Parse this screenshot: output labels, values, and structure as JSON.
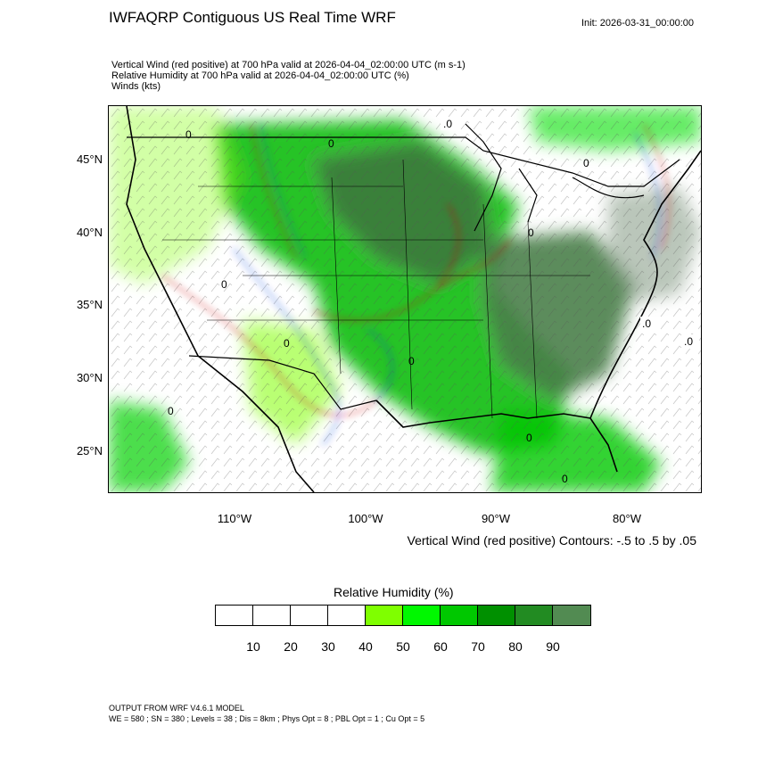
{
  "header": {
    "title": "IWFAQRP Contiguous US Real Time WRF",
    "init": "Init: 2026-03-31_00:00:00"
  },
  "description": {
    "line1": "Vertical Wind (red positive) at 700 hPa valid at 2026-04-04_02:00:00 UTC   (m s-1)",
    "line2": "Relative Humidity at 700 hPa valid at 2026-04-04_02:00:00 UTC   (%)",
    "line3": "Winds   (kts)"
  },
  "map": {
    "latitude_labels": [
      "45°N",
      "40°N",
      "35°N",
      "30°N",
      "25°N"
    ],
    "longitude_labels": [
      "110°W",
      "100°W",
      "90°W",
      "80°W"
    ],
    "contour_labels": [
      ".0",
      "0",
      "0",
      "0",
      "0",
      "0",
      ".0",
      "0",
      "0",
      ".0",
      "0",
      "0",
      "0"
    ],
    "colors": {
      "border": "#000000",
      "positive_vertical_wind": "#cc0000",
      "negative_vertical_wind": "#1f3fd8"
    }
  },
  "contour_note": "Vertical Wind (red positive) Contours: -.5 to .5 by .05",
  "colorbar": {
    "title": "Relative Humidity  (%)",
    "colors": [
      "#ffffff",
      "#ffffff",
      "#ffffff",
      "#ffffff",
      "#7fff00",
      "#00f800",
      "#00c800",
      "#009000",
      "#228b22",
      "#528b52"
    ],
    "ticks": [
      "10",
      "20",
      "30",
      "40",
      "50",
      "60",
      "70",
      "80",
      "90"
    ]
  },
  "footer": {
    "line1": "OUTPUT FROM WRF V4.6.1 MODEL",
    "line2": "WE = 580 ; SN = 380 ; Levels = 38 ; Dis = 8km ; Phys Opt = 8 ; PBL Opt = 1 ; Cu Opt = 5"
  }
}
